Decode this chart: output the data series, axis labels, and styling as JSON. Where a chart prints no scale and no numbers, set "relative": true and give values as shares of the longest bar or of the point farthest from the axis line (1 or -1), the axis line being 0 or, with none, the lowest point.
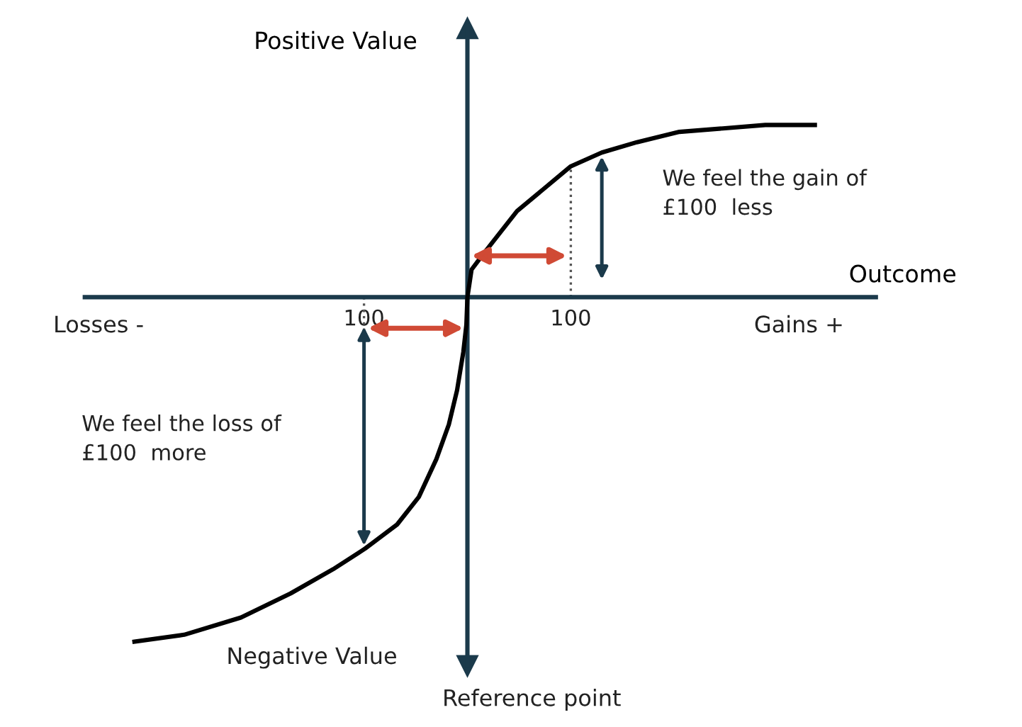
{
  "chart_data": {
    "type": "line",
    "relative": true,
    "xlabel": "Outcome",
    "ylabel": "Positive Value",
    "x": [
      -322,
      -274,
      -219,
      -171,
      -130,
      -99,
      -68,
      -47,
      -30,
      -18,
      -10,
      -4,
      -1,
      0,
      4,
      14,
      27,
      48,
      68,
      100,
      130,
      164,
      205,
      247,
      288,
      336
    ],
    "series": [
      {
        "color": "#000000",
        "values": [
          -1,
          -0.98,
          -0.93,
          -0.86,
          -0.79,
          -0.73,
          -0.66,
          -0.58,
          -0.47,
          -0.37,
          -0.27,
          -0.16,
          -0.08,
          0,
          0.08,
          0.12,
          0.17,
          0.25,
          0.3,
          0.38,
          0.42,
          0.45,
          0.48,
          0.49,
          0.5,
          0.5
        ]
      }
    ],
    "xlim": [
      -370,
      395
    ],
    "xticks": [
      {
        "value": -100,
        "label": "100"
      },
      100
    ],
    "marker": "none",
    "line_style": "solid",
    "grid": false,
    "legend": false,
    "annotations": [
      "Negative Value",
      "Reference point",
      "Losses -",
      "Gains +",
      "We feel the gain of\n£100  less",
      "We feel the loss of\n£100  more"
    ]
  }
}
